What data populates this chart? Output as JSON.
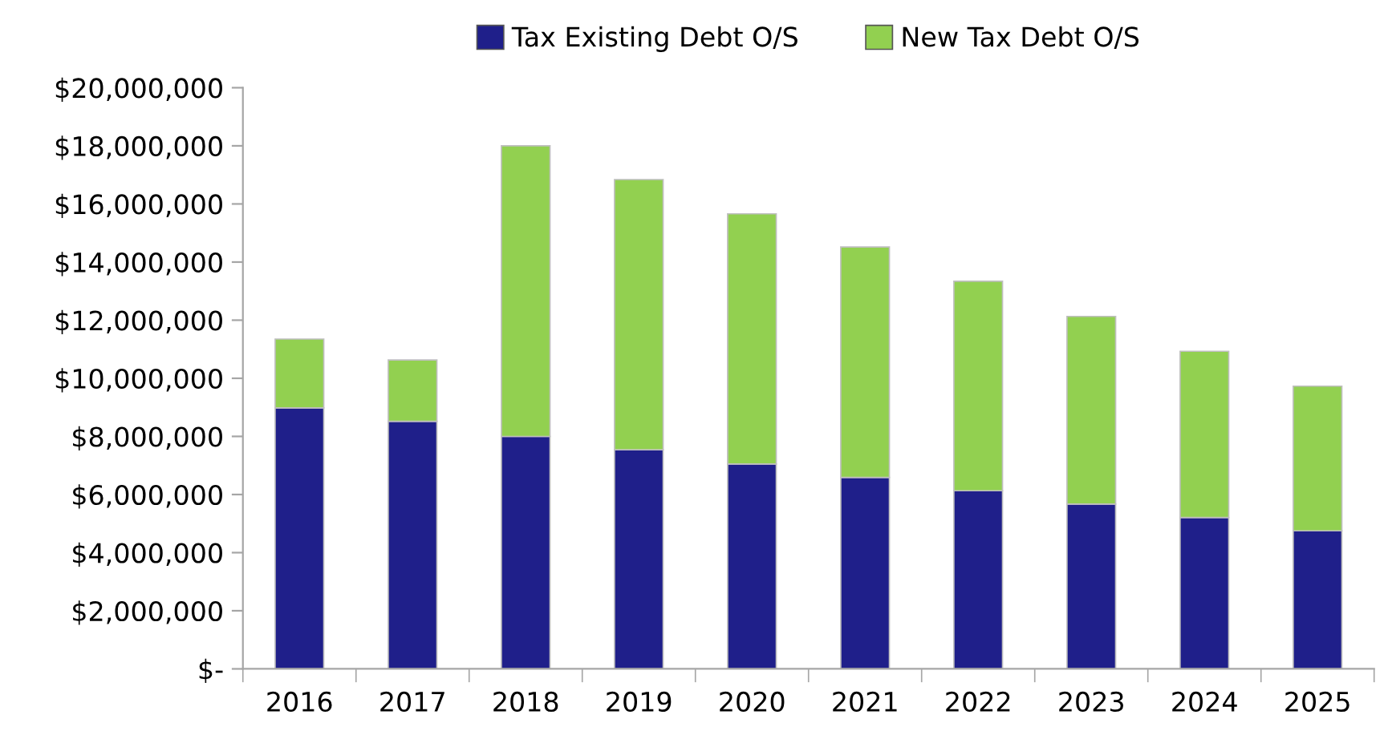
{
  "chart_data": {
    "type": "bar",
    "stacked": true,
    "categories": [
      "2016",
      "2017",
      "2018",
      "2019",
      "2020",
      "2021",
      "2022",
      "2023",
      "2024",
      "2025"
    ],
    "series": [
      {
        "name": "Tax Existing Debt O/S",
        "color": "#1f1f8a",
        "values": [
          8980000,
          8520000,
          8000000,
          7540000,
          7050000,
          6590000,
          6130000,
          5670000,
          5210000,
          4750000
        ]
      },
      {
        "name": "New Tax Debt O/S",
        "color": "#92d050",
        "values": [
          2370000,
          2110000,
          10000000,
          9300000,
          8610000,
          7930000,
          7210000,
          6460000,
          5720000,
          4980000
        ]
      }
    ],
    "ylim": [
      0,
      20000000
    ],
    "yticks": [
      {
        "value": 0,
        "label": "$-"
      },
      {
        "value": 2000000,
        "label": "$2,000,000"
      },
      {
        "value": 4000000,
        "label": "$4,000,000"
      },
      {
        "value": 6000000,
        "label": "$6,000,000"
      },
      {
        "value": 8000000,
        "label": "$8,000,000"
      },
      {
        "value": 10000000,
        "label": "$10,000,000"
      },
      {
        "value": 12000000,
        "label": "$12,000,000"
      },
      {
        "value": 14000000,
        "label": "$14,000,000"
      },
      {
        "value": 16000000,
        "label": "$16,000,000"
      },
      {
        "value": 18000000,
        "label": "$18,000,000"
      },
      {
        "value": 20000000,
        "label": "$20,000,000"
      }
    ],
    "grid": false,
    "legend": "top"
  }
}
